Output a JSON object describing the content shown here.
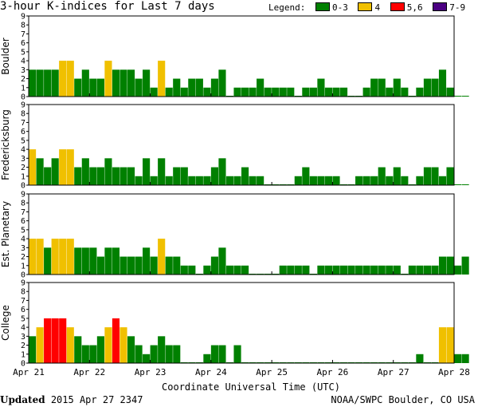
{
  "header": {
    "title": "3-hour K-indices for Last 7 days"
  },
  "legend": {
    "label": "Legend:",
    "items": [
      {
        "text": "0-3",
        "color": "#008000"
      },
      {
        "text": "4",
        "color": "#f0c000"
      },
      {
        "text": "5,6",
        "color": "#ff0000"
      },
      {
        "text": "7-9",
        "color": "#4b0082"
      }
    ]
  },
  "footer": {
    "updated_label": "Updated",
    "updated_value": "2015 Apr 27 2347",
    "credit": "NOAA/SWPC Boulder, CO USA"
  },
  "chart_data": {
    "type": "bar",
    "xlabel": "Coordinate Universal Time (UTC)",
    "x_tick_labels": [
      "Apr 21",
      "Apr 22",
      "Apr 23",
      "Apr 24",
      "Apr 25",
      "Apr 26",
      "Apr 27",
      "Apr 28"
    ],
    "ylim": [
      0,
      9
    ],
    "y_ticks": [
      0,
      1,
      2,
      3,
      4,
      5,
      6,
      7,
      8,
      9
    ],
    "bars_per_day": 8,
    "color_scale": {
      "0-3": "#008000",
      "4": "#f0c000",
      "5,6": "#ff0000",
      "7-9": "#4b0082"
    },
    "series": [
      {
        "name": "Boulder",
        "values": [
          3,
          3,
          3,
          3,
          4,
          4,
          2,
          3,
          2,
          2,
          4,
          3,
          3,
          3,
          2,
          3,
          1,
          4,
          1,
          2,
          1,
          2,
          2,
          1,
          2,
          3,
          0,
          1,
          1,
          1,
          2,
          1,
          1,
          1,
          1,
          0,
          1,
          1,
          2,
          1,
          1,
          1,
          0,
          0,
          1,
          2,
          2,
          1,
          2,
          1,
          0,
          1,
          2,
          2,
          3,
          1,
          0,
          0
        ]
      },
      {
        "name": "Fredericksburg",
        "values": [
          4,
          3,
          2,
          3,
          4,
          4,
          2,
          3,
          2,
          2,
          3,
          2,
          2,
          2,
          1,
          3,
          1,
          3,
          1,
          2,
          2,
          1,
          1,
          1,
          2,
          3,
          1,
          1,
          2,
          1,
          1,
          0,
          0,
          0,
          0,
          1,
          2,
          1,
          1,
          1,
          1,
          0,
          0,
          1,
          1,
          1,
          2,
          1,
          2,
          1,
          0,
          1,
          2,
          2,
          1,
          2,
          0,
          0
        ]
      },
      {
        "name": "Est. Planetary",
        "values": [
          4,
          4,
          3,
          4,
          4,
          4,
          3,
          3,
          3,
          2,
          3,
          3,
          2,
          2,
          2,
          3,
          2,
          4,
          2,
          2,
          1,
          1,
          0,
          1,
          2,
          3,
          1,
          1,
          1,
          0,
          0,
          0,
          0,
          1,
          1,
          1,
          1,
          0,
          1,
          1,
          1,
          1,
          1,
          1,
          1,
          1,
          1,
          1,
          1,
          0,
          1,
          1,
          1,
          1,
          2,
          2,
          1,
          2
        ]
      },
      {
        "name": "College",
        "values": [
          3,
          4,
          5,
          5,
          5,
          4,
          3,
          2,
          2,
          3,
          4,
          5,
          4,
          3,
          2,
          1,
          2,
          3,
          2,
          2,
          0,
          0,
          0,
          1,
          2,
          2,
          0,
          2,
          0,
          0,
          0,
          0,
          0,
          0,
          0,
          0,
          0,
          0,
          0,
          0,
          0,
          0,
          0,
          0,
          0,
          0,
          0,
          0,
          0,
          0,
          0,
          1,
          0,
          0,
          4,
          4,
          1,
          1
        ]
      }
    ]
  }
}
